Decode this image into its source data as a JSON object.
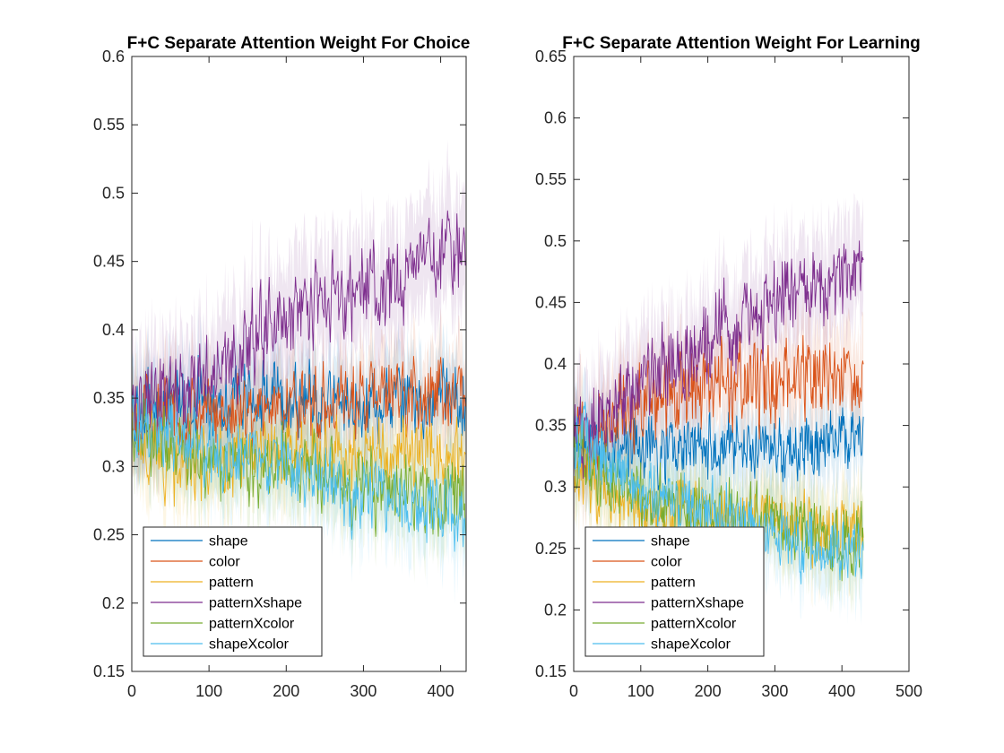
{
  "chart_data": [
    {
      "type": "line",
      "title": "F+C Separate Attention Weight For Choice",
      "xlabel": "",
      "ylabel": "",
      "xlim": [
        0,
        433
      ],
      "ylim": [
        0.15,
        0.6
      ],
      "xticks": [
        0,
        100,
        200,
        300,
        400
      ],
      "yticks": [
        0.15,
        0.2,
        0.25,
        0.3,
        0.35,
        0.4,
        0.45,
        0.5,
        0.55,
        0.6
      ],
      "grid": false,
      "legend_position": "bottom-left",
      "n_trials": 433,
      "shaded_error_band": true,
      "series": [
        {
          "name": "shape",
          "color": "#0072BD",
          "keypoints_x": [
            0,
            100,
            200,
            300,
            433
          ],
          "keypoints_y": [
            0.34,
            0.35,
            0.35,
            0.345,
            0.35
          ],
          "noise": 0.02,
          "band": 0.03
        },
        {
          "name": "color",
          "color": "#D95319",
          "keypoints_x": [
            0,
            100,
            200,
            300,
            433
          ],
          "keypoints_y": [
            0.34,
            0.34,
            0.345,
            0.35,
            0.355
          ],
          "noise": 0.02,
          "band": 0.03
        },
        {
          "name": "pattern",
          "color": "#EDB120",
          "keypoints_x": [
            0,
            50,
            100,
            200,
            300,
            433
          ],
          "keypoints_y": [
            0.33,
            0.3,
            0.3,
            0.31,
            0.31,
            0.31
          ],
          "noise": 0.02,
          "band": 0.03
        },
        {
          "name": "patternXshape",
          "color": "#7E2F8E",
          "keypoints_x": [
            0,
            100,
            200,
            300,
            433
          ],
          "keypoints_y": [
            0.34,
            0.37,
            0.41,
            0.43,
            0.46
          ],
          "noise": 0.025,
          "band": 0.04
        },
        {
          "name": "patternXcolor",
          "color": "#77AC30",
          "keypoints_x": [
            0,
            100,
            200,
            300,
            433
          ],
          "keypoints_y": [
            0.33,
            0.3,
            0.3,
            0.285,
            0.275
          ],
          "noise": 0.02,
          "band": 0.03
        },
        {
          "name": "shapeXcolor",
          "color": "#4DBEEE",
          "keypoints_x": [
            0,
            100,
            200,
            300,
            433
          ],
          "keypoints_y": [
            0.34,
            0.31,
            0.3,
            0.28,
            0.265
          ],
          "noise": 0.02,
          "band": 0.03
        }
      ]
    },
    {
      "type": "line",
      "title": "F+C Separate Attention Weight For Learning",
      "xlabel": "",
      "ylabel": "",
      "xlim": [
        0,
        500
      ],
      "ylim": [
        0.15,
        0.65
      ],
      "xticks": [
        0,
        100,
        200,
        300,
        400,
        500
      ],
      "yticks": [
        0.15,
        0.2,
        0.25,
        0.3,
        0.35,
        0.4,
        0.45,
        0.5,
        0.55,
        0.6,
        0.65
      ],
      "grid": false,
      "legend_position": "bottom-left",
      "n_trials": 433,
      "shaded_error_band": true,
      "series": [
        {
          "name": "shape",
          "color": "#0072BD",
          "keypoints_x": [
            0,
            100,
            200,
            300,
            433
          ],
          "keypoints_y": [
            0.34,
            0.33,
            0.33,
            0.33,
            0.34
          ],
          "noise": 0.02,
          "band": 0.03
        },
        {
          "name": "color",
          "color": "#D95319",
          "keypoints_x": [
            0,
            100,
            200,
            300,
            433
          ],
          "keypoints_y": [
            0.34,
            0.37,
            0.38,
            0.385,
            0.39
          ],
          "noise": 0.025,
          "band": 0.035
        },
        {
          "name": "pattern",
          "color": "#EDB120",
          "keypoints_x": [
            0,
            50,
            100,
            200,
            300,
            433
          ],
          "keypoints_y": [
            0.32,
            0.29,
            0.28,
            0.275,
            0.27,
            0.265
          ],
          "noise": 0.02,
          "band": 0.03
        },
        {
          "name": "patternXshape",
          "color": "#7E2F8E",
          "keypoints_x": [
            0,
            100,
            200,
            300,
            433
          ],
          "keypoints_y": [
            0.34,
            0.38,
            0.42,
            0.45,
            0.48
          ],
          "noise": 0.025,
          "band": 0.04
        },
        {
          "name": "patternXcolor",
          "color": "#77AC30",
          "keypoints_x": [
            0,
            100,
            200,
            300,
            433
          ],
          "keypoints_y": [
            0.33,
            0.29,
            0.28,
            0.265,
            0.255
          ],
          "noise": 0.02,
          "band": 0.03
        },
        {
          "name": "shapeXcolor",
          "color": "#4DBEEE",
          "keypoints_x": [
            0,
            100,
            200,
            300,
            433
          ],
          "keypoints_y": [
            0.34,
            0.3,
            0.28,
            0.26,
            0.245
          ],
          "noise": 0.02,
          "band": 0.03
        }
      ]
    }
  ]
}
